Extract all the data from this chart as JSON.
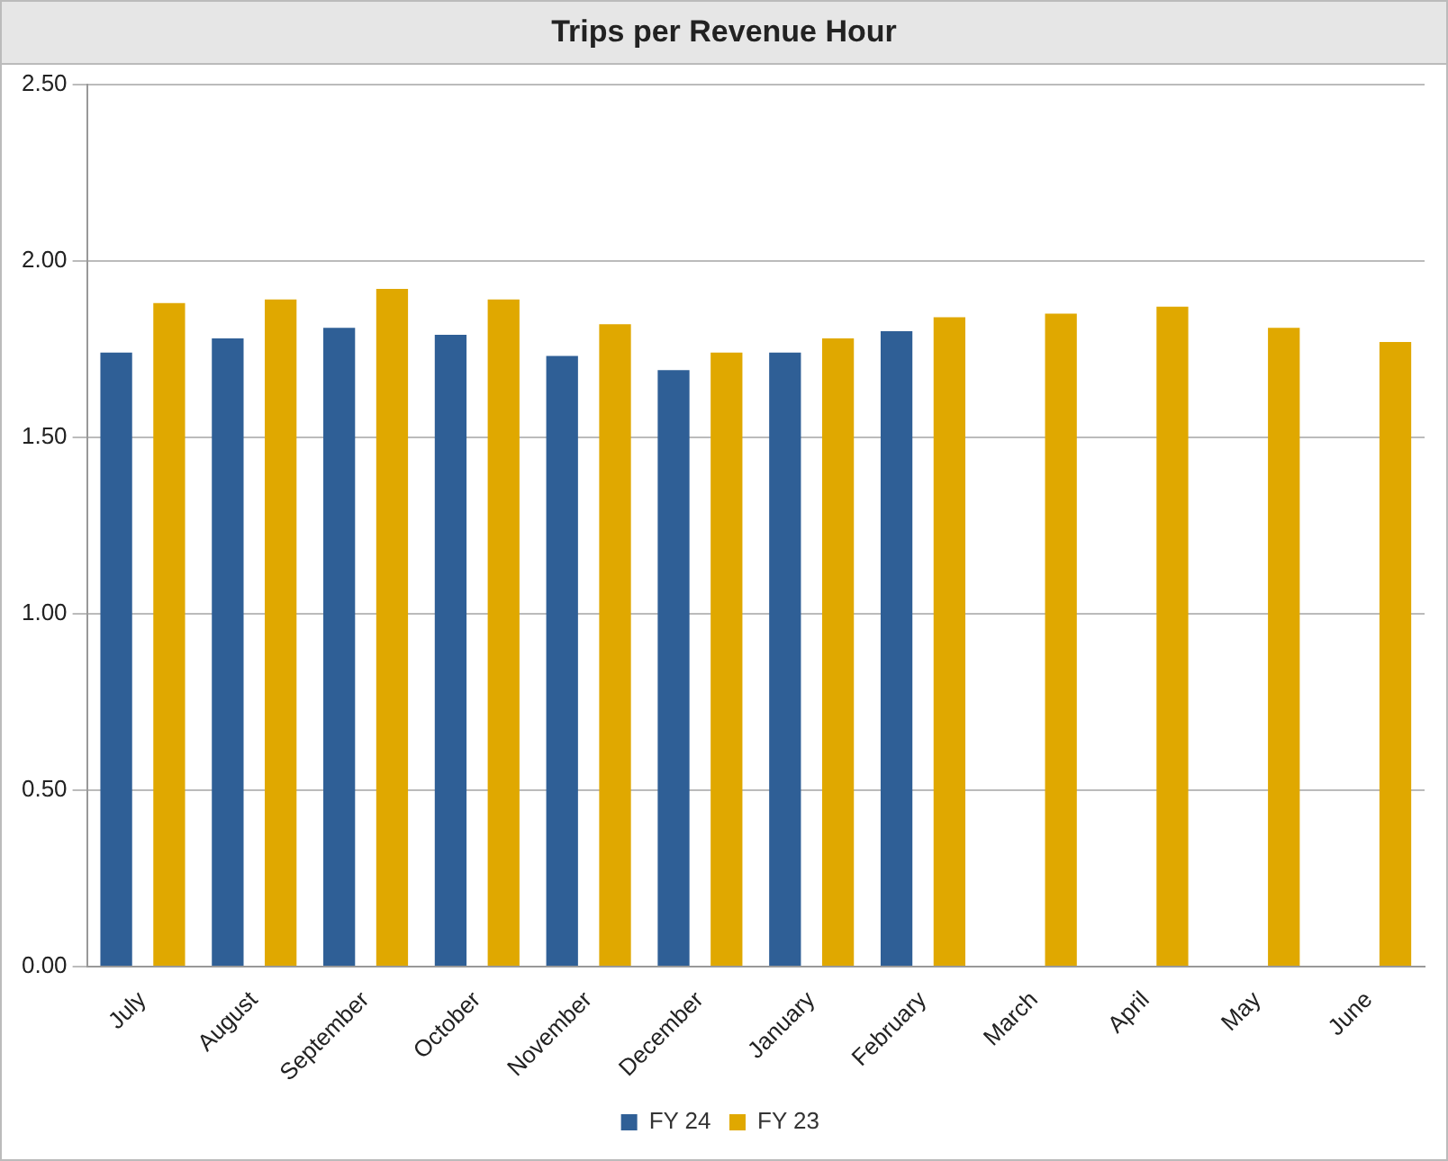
{
  "chart_data": {
    "type": "bar",
    "title": "Trips per Revenue Hour",
    "categories": [
      "July",
      "August",
      "September",
      "October",
      "November",
      "December",
      "January",
      "February",
      "March",
      "April",
      "May",
      "June"
    ],
    "series": [
      {
        "name": "FY 24",
        "color": "#2f5f96",
        "values": [
          1.74,
          1.78,
          1.81,
          1.79,
          1.73,
          1.69,
          1.74,
          1.8,
          null,
          null,
          null,
          null
        ]
      },
      {
        "name": "FY 23",
        "color": "#e0a800",
        "values": [
          1.88,
          1.89,
          1.92,
          1.89,
          1.82,
          1.74,
          1.78,
          1.84,
          1.85,
          1.87,
          1.81,
          1.77
        ]
      }
    ],
    "ylim": [
      0,
      2.5
    ],
    "yticks": [
      {
        "value": 0,
        "label": "0.00"
      },
      {
        "value": 0.5,
        "label": "0.50"
      },
      {
        "value": 1,
        "label": "1.00"
      },
      {
        "value": 1.5,
        "label": "1.50"
      },
      {
        "value": 2,
        "label": "2.00"
      },
      {
        "value": 2.5,
        "label": "2.50"
      }
    ],
    "grid": "y",
    "legend": "bottom"
  }
}
